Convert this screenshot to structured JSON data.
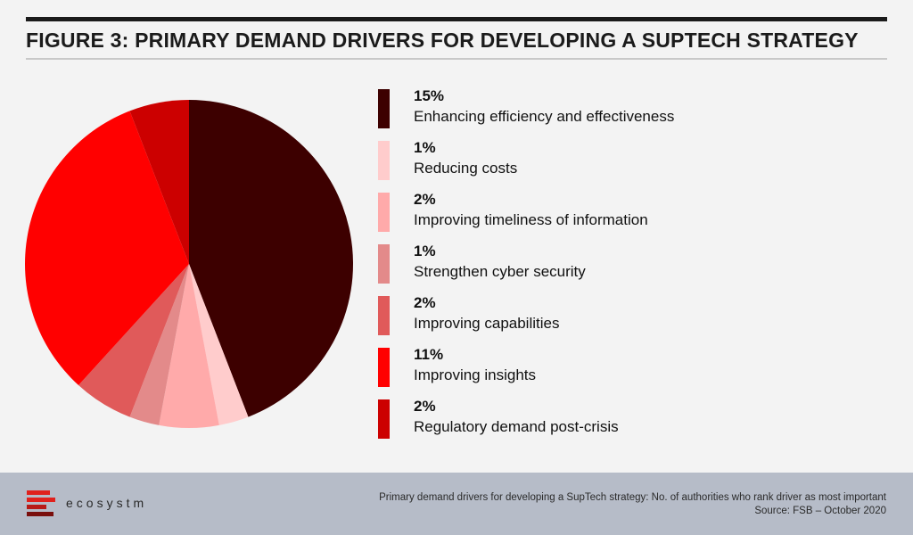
{
  "title": "FIGURE 3: PRIMARY DEMAND DRIVERS FOR DEVELOPING A SUPTECH STRATEGY",
  "chart_data": {
    "type": "pie",
    "slices": [
      {
        "label": "Enhancing efficiency and effectiveness",
        "value": 15,
        "display": "15%",
        "color": "#3d0000"
      },
      {
        "label": "Reducing costs",
        "value": 1,
        "display": "1%",
        "color": "#ffcccc"
      },
      {
        "label": "Improving timeliness of information",
        "value": 2,
        "display": "2%",
        "color": "#ffaaaa"
      },
      {
        "label": "Strengthen cyber security",
        "value": 1,
        "display": "1%",
        "color": "#e38a8a"
      },
      {
        "label": "Improving capabilities",
        "value": 2,
        "display": "2%",
        "color": "#e05a5a"
      },
      {
        "label": "Improving insights",
        "value": 11,
        "display": "11%",
        "color": "#ff0000"
      },
      {
        "label": "Regulatory demand post-crisis",
        "value": 2,
        "display": "2%",
        "color": "#cc0000"
      }
    ],
    "legend_position": "right"
  },
  "footer": {
    "brand": "ecosystm",
    "note_line1": "Primary demand drivers for developing a SupTech strategy: No. of authorities who rank driver as most important",
    "note_line2": "Source: FSB – October 2020",
    "logo_color": "#e0211d"
  }
}
